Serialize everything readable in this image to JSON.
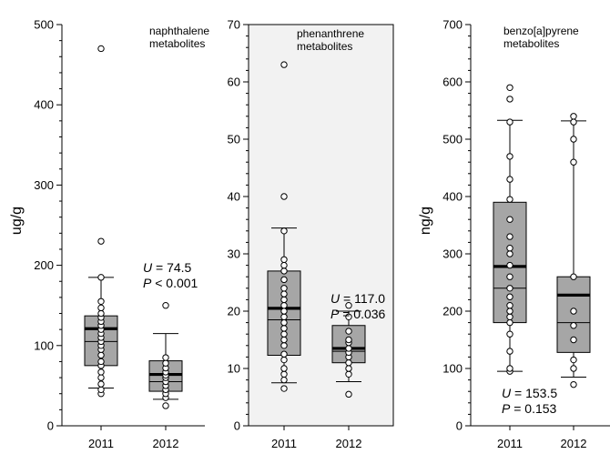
{
  "colors": {
    "box_fill": "#a6a6a6",
    "panel_bg": "#f2f2f2",
    "axis": "#000000",
    "point_fill": "#ffffff"
  },
  "chart_data": [
    {
      "type": "box",
      "ylabel": "ug/g",
      "ylim": [
        0,
        500
      ],
      "yticks": [
        0,
        100,
        200,
        300,
        400,
        500
      ],
      "categories": [
        "2011",
        "2012"
      ],
      "annotation": [
        "naphthalene",
        "metabolites"
      ],
      "stat": {
        "u_label": "U",
        "u_value": "= 74.5",
        "p_label": "P",
        "p_value": "< 0.001"
      },
      "boxes": [
        {
          "category": "2011",
          "whisker_low": 47,
          "q1": 75,
          "median": 105,
          "mean": 121,
          "q3": 137,
          "whisker_high": 185,
          "points": [
            40,
            45,
            52,
            60,
            67,
            75,
            80,
            88,
            95,
            100,
            105,
            110,
            115,
            120,
            125,
            130,
            135,
            140,
            147,
            155,
            185,
            230,
            470
          ]
        },
        {
          "category": "2012",
          "whisker_low": 33,
          "q1": 43,
          "median": 55,
          "mean": 64,
          "q3": 81,
          "whisker_high": 115,
          "points": [
            25,
            35,
            40,
            45,
            50,
            55,
            60,
            63,
            67,
            72,
            78,
            85,
            150
          ]
        }
      ]
    },
    {
      "type": "box",
      "ylabel": "",
      "ylim": [
        0,
        70
      ],
      "yticks": [
        0,
        10,
        20,
        30,
        40,
        50,
        60,
        70
      ],
      "categories": [
        "2011",
        "2012"
      ],
      "annotation": [
        "phenanthrene",
        "metabolites"
      ],
      "stat": {
        "u_label": "U",
        "u_value": "= 117.0",
        "p_label": "P",
        "p_value": "= 0.036"
      },
      "boxes": [
        {
          "category": "2011",
          "whisker_low": 7.5,
          "q1": 12.3,
          "median": 18.5,
          "mean": 20.5,
          "q3": 27,
          "whisker_high": 34.5,
          "points": [
            6.5,
            8,
            9,
            10,
            11.5,
            12.5,
            14,
            15,
            16,
            17,
            18,
            19,
            20,
            21,
            22,
            23,
            24,
            25.5,
            27,
            28,
            29,
            34,
            40,
            63
          ]
        },
        {
          "category": "2012",
          "whisker_low": 7.7,
          "q1": 11,
          "median": 13,
          "mean": 13.5,
          "q3": 17.5,
          "whisker_high": 20,
          "points": [
            5.5,
            9,
            10,
            11,
            12,
            12.8,
            13.5,
            14.5,
            15,
            16.5,
            19,
            21
          ]
        }
      ]
    },
    {
      "type": "box",
      "ylabel": "ng/g",
      "ylim": [
        0,
        700
      ],
      "yticks": [
        0,
        100,
        200,
        300,
        400,
        500,
        600,
        700
      ],
      "categories": [
        "2011",
        "2012"
      ],
      "annotation": [
        "benzo[a]pyrene",
        "metabolites"
      ],
      "stat": {
        "u_label": "U",
        "u_value": "= 153.5",
        "p_label": "P",
        "p_value": "= 0.153"
      },
      "boxes": [
        {
          "category": "2011",
          "whisker_low": 95,
          "q1": 180,
          "median": 240,
          "mean": 278,
          "q3": 390,
          "whisker_high": 533,
          "points": [
            95,
            100,
            130,
            160,
            180,
            190,
            200,
            210,
            225,
            240,
            260,
            280,
            300,
            310,
            330,
            360,
            395,
            430,
            470,
            530,
            570,
            590
          ]
        },
        {
          "category": "2012",
          "whisker_low": 85,
          "q1": 128,
          "median": 180,
          "mean": 228,
          "q3": 260,
          "whisker_high": 532,
          "points": [
            72,
            100,
            115,
            150,
            175,
            200,
            260,
            460,
            500,
            530,
            540
          ]
        }
      ]
    }
  ]
}
